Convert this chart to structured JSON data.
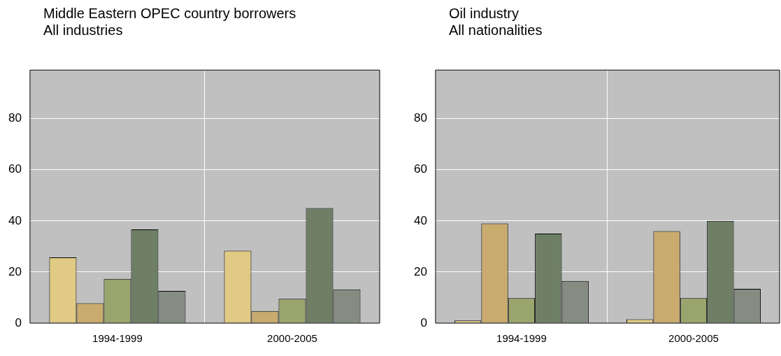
{
  "chart_data": [
    {
      "type": "bar",
      "title": "Middle Eastern OPEC country borrowers",
      "subtitle": "All industries",
      "categories": [
        "1994-1999",
        "2000-2005"
      ],
      "series": [
        {
          "color": "#e0ca84",
          "values": [
            25.7,
            28.3
          ]
        },
        {
          "color": "#c9ab6f",
          "values": [
            7.8,
            4.7
          ]
        },
        {
          "color": "#9aa56e",
          "values": [
            17.3,
            9.5
          ]
        },
        {
          "color": "#6e7f66",
          "values": [
            36.7,
            45
          ]
        },
        {
          "color": "#868c82",
          "values": [
            12.6,
            13.2
          ]
        }
      ],
      "ylim": [
        0,
        99
      ],
      "yticks": [
        0,
        20,
        40,
        60,
        80
      ],
      "grid": true,
      "legend": false
    },
    {
      "type": "bar",
      "title": "Oil industry",
      "subtitle": "All nationalities",
      "categories": [
        "1994-1999",
        "2000-2005"
      ],
      "series": [
        {
          "color": "#e0ca84",
          "values": [
            1,
            1.5
          ]
        },
        {
          "color": "#c9ab6f",
          "values": [
            39,
            36
          ]
        },
        {
          "color": "#9aa56e",
          "values": [
            9.8,
            9.8
          ]
        },
        {
          "color": "#6e7f66",
          "values": [
            35,
            40
          ]
        },
        {
          "color": "#868c82",
          "values": [
            16.5,
            13.4
          ]
        }
      ],
      "ylim": [
        0,
        99
      ],
      "yticks": [
        0,
        20,
        40,
        60,
        80
      ],
      "grid": true,
      "legend": false
    }
  ]
}
